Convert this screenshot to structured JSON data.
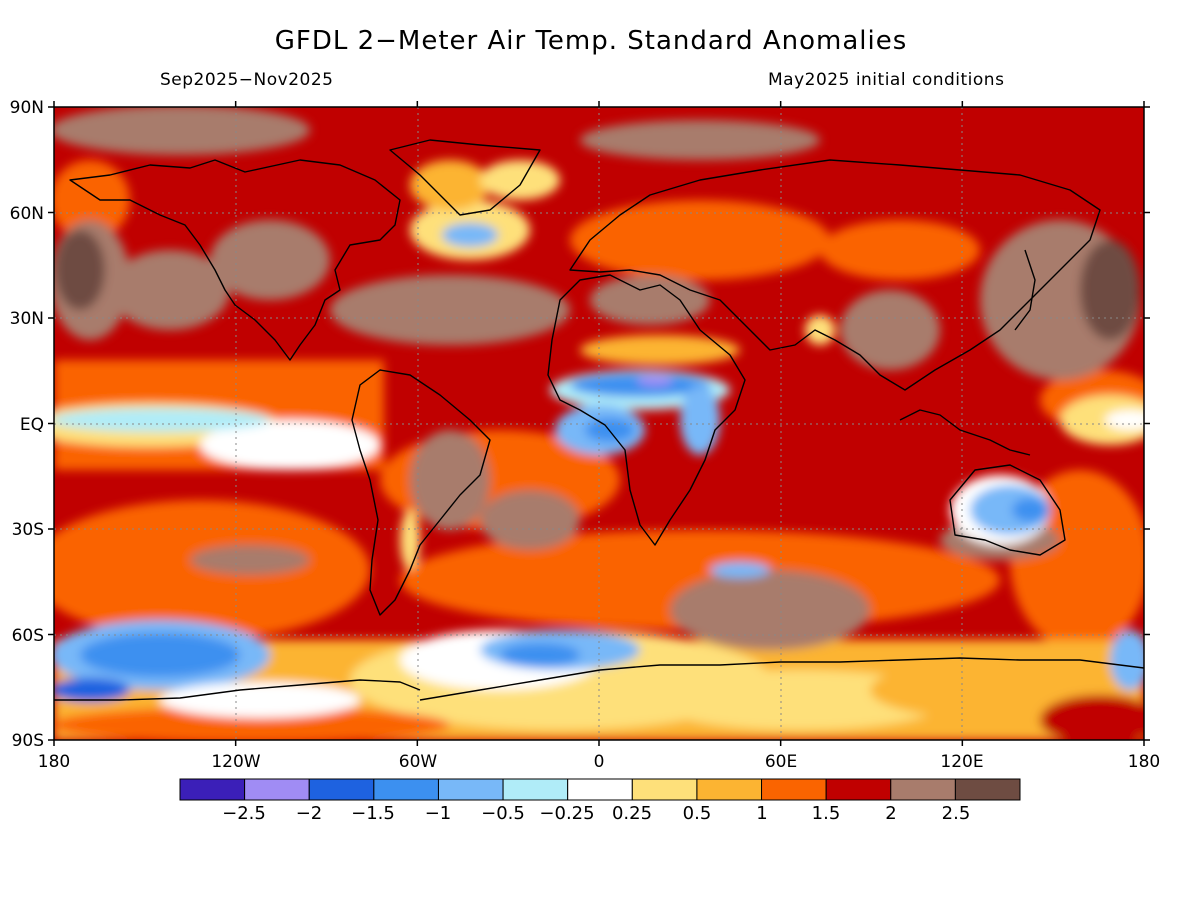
{
  "header": {
    "title": "GFDL 2−Meter Air Temp. Standard Anomalies",
    "period": "Sep2025−Nov2025",
    "init": "May2025 initial conditions"
  },
  "map": {
    "projection": "equirectangular",
    "lon_range": [
      -180,
      180
    ],
    "lat_range": [
      -90,
      90
    ],
    "lon_ticks": [
      "180",
      "120W",
      "60W",
      "0",
      "60E",
      "120E",
      "180"
    ],
    "lat_ticks": [
      "90N",
      "60N",
      "30N",
      "EQ",
      "30S",
      "60S",
      "90S"
    ],
    "gridlines": "dotted"
  },
  "colorbar": {
    "labels": [
      "−2.5",
      "−2",
      "−1.5",
      "−1",
      "−0.5",
      "−0.25",
      "0.25",
      "0.5",
      "1",
      "1.5",
      "2",
      "2.5"
    ],
    "colors": [
      "#3b1fb8",
      "#a08cf4",
      "#1e62e0",
      "#3c90f0",
      "#78b8f8",
      "#b0ecf8",
      "#ffffff",
      "#fee07a",
      "#fcb432",
      "#fa6400",
      "#c00000",
      "#a87c6c",
      "#6e4c42"
    ]
  }
}
